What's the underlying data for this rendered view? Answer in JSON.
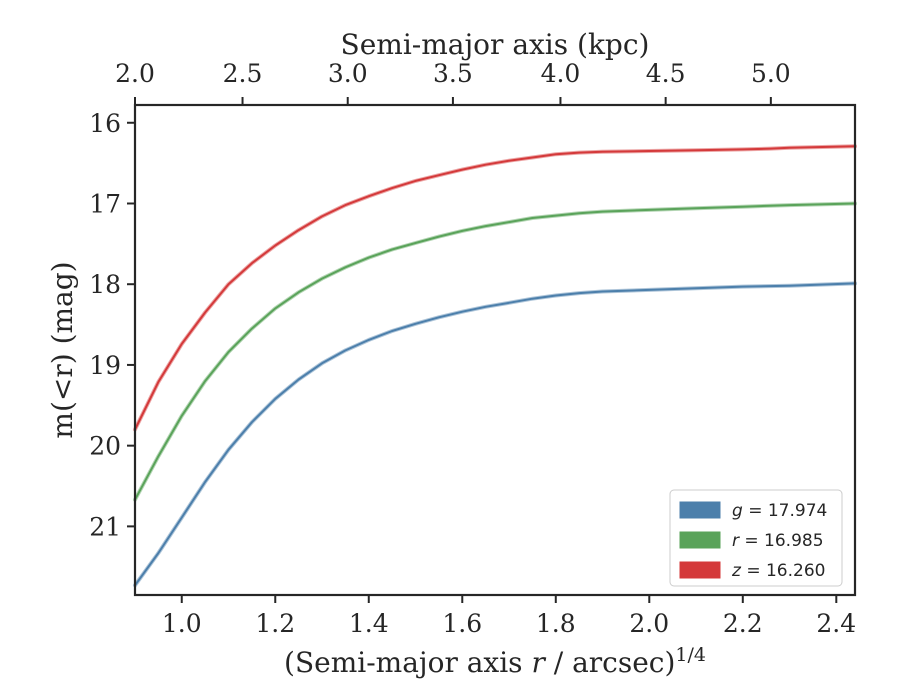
{
  "chart_data": {
    "type": "line",
    "title": "",
    "xlabel": "(Semi-major axis r / arcsec)^1/4",
    "xlabel_parts": {
      "pre": "(Semi-major axis ",
      "var": "r",
      "post": " / arcsec)",
      "sup": "1/4"
    },
    "ylabel": "m(<r) (mag)",
    "x2label": "Semi-major axis (kpc)",
    "xlim": [
      0.9,
      2.44
    ],
    "ylim": [
      21.85,
      15.78
    ],
    "y_inverted": true,
    "x_ticks": [
      "1.0",
      "1.2",
      "1.4",
      "1.6",
      "1.8",
      "2.0",
      "2.2",
      "2.4"
    ],
    "y_ticks": [
      "16",
      "17",
      "18",
      "19",
      "20",
      "21"
    ],
    "x2_ticks": [
      "2.0",
      "2.5",
      "3.0",
      "3.5",
      "4.0",
      "4.5",
      "5.0"
    ],
    "x2_tick_positions": [
      0.9,
      1.13,
      1.355,
      1.58,
      1.81,
      2.035,
      2.26
    ],
    "grid": false,
    "legend_position": "bottom-right",
    "series": [
      {
        "name": "g = 17.974",
        "legend_var": "g",
        "legend_value": "= 17.974",
        "color": "#4c7fab",
        "x": [
          0.9,
          0.95,
          1.0,
          1.05,
          1.1,
          1.15,
          1.2,
          1.25,
          1.3,
          1.35,
          1.4,
          1.45,
          1.5,
          1.55,
          1.6,
          1.65,
          1.7,
          1.75,
          1.8,
          1.85,
          1.9,
          2.0,
          2.1,
          2.2,
          2.3,
          2.44
        ],
        "y": [
          21.73,
          21.33,
          20.89,
          20.45,
          20.05,
          19.71,
          19.42,
          19.18,
          18.98,
          18.82,
          18.69,
          18.58,
          18.49,
          18.41,
          18.34,
          18.28,
          18.23,
          18.18,
          18.14,
          18.11,
          18.09,
          18.07,
          18.05,
          18.03,
          18.02,
          17.99
        ]
      },
      {
        "name": "r = 16.985",
        "legend_var": "r",
        "legend_value": "= 16.985",
        "color": "#5aa35a",
        "x": [
          0.9,
          0.95,
          1.0,
          1.05,
          1.1,
          1.15,
          1.2,
          1.25,
          1.3,
          1.35,
          1.4,
          1.45,
          1.5,
          1.55,
          1.6,
          1.65,
          1.7,
          1.75,
          1.8,
          1.85,
          1.9,
          2.0,
          2.1,
          2.2,
          2.3,
          2.44
        ],
        "y": [
          20.67,
          20.13,
          19.63,
          19.2,
          18.84,
          18.55,
          18.3,
          18.1,
          17.93,
          17.79,
          17.67,
          17.57,
          17.49,
          17.41,
          17.34,
          17.28,
          17.23,
          17.18,
          17.15,
          17.12,
          17.1,
          17.08,
          17.06,
          17.04,
          17.02,
          17.0
        ]
      },
      {
        "name": "z = 16.260",
        "legend_var": "z",
        "legend_value": "= 16.260",
        "color": "#d4393a",
        "x": [
          0.9,
          0.95,
          1.0,
          1.05,
          1.1,
          1.15,
          1.2,
          1.25,
          1.3,
          1.35,
          1.4,
          1.45,
          1.5,
          1.55,
          1.6,
          1.65,
          1.7,
          1.75,
          1.8,
          1.85,
          1.9,
          2.0,
          2.1,
          2.2,
          2.26,
          2.3,
          2.44
        ],
        "y": [
          19.8,
          19.21,
          18.74,
          18.35,
          18.0,
          17.74,
          17.52,
          17.33,
          17.16,
          17.02,
          16.91,
          16.81,
          16.72,
          16.65,
          16.58,
          16.52,
          16.47,
          16.43,
          16.39,
          16.37,
          16.36,
          16.35,
          16.34,
          16.33,
          16.32,
          16.31,
          16.29
        ]
      }
    ]
  }
}
